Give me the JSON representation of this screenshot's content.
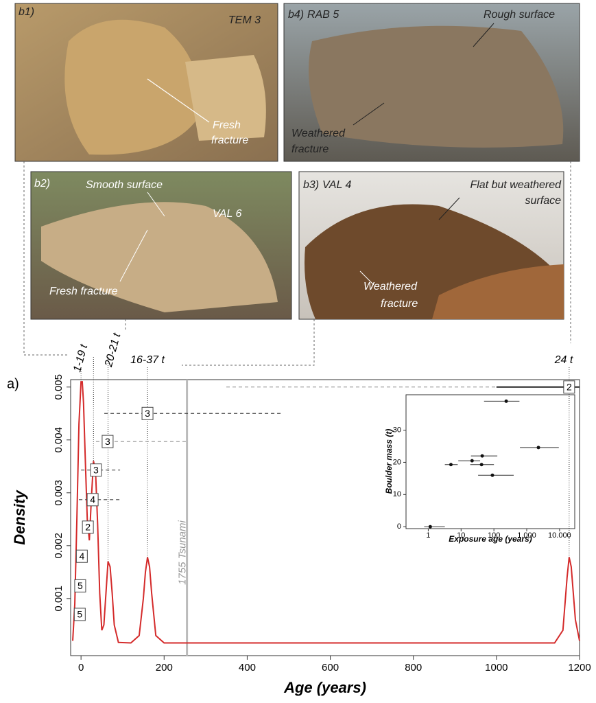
{
  "photos": [
    {
      "id": "b1)",
      "name": "TEM 3",
      "notes": [
        "Fresh",
        "fracture"
      ]
    },
    {
      "id": "b4)",
      "name": "RAB 5",
      "notes": [
        "Rough surface",
        "Weathered",
        "fracture"
      ]
    },
    {
      "id": "b2)",
      "name": "VAL 6",
      "notes": [
        "Smooth surface",
        "Fresh fracture"
      ]
    },
    {
      "id": "b3)",
      "name": "VAL 4",
      "notes": [
        "Flat but weathered",
        "surface",
        "Weathered",
        "fracture"
      ]
    }
  ],
  "chart_data": [
    {
      "type": "line",
      "panel": "a)",
      "xlabel": "Age (years)",
      "ylabel": "Density",
      "color": "#d42a2a",
      "x": [
        -20,
        -15,
        -10,
        -5,
        0,
        3,
        6,
        10,
        15,
        20,
        25,
        30,
        35,
        40,
        45,
        50,
        55,
        60,
        65,
        70,
        75,
        80,
        90,
        120,
        140,
        150,
        155,
        160,
        165,
        170,
        180,
        200,
        600,
        1140,
        1160,
        1170,
        1175,
        1180,
        1190,
        1200
      ],
      "values": [
        0.0002,
        0.0009,
        0.0025,
        0.0043,
        0.0051,
        0.0051,
        0.0047,
        0.0037,
        0.0025,
        0.0021,
        0.0029,
        0.0036,
        0.0034,
        0.0024,
        0.0011,
        0.0004,
        0.0005,
        0.0011,
        0.0017,
        0.0016,
        0.0011,
        0.0005,
        0.00017,
        0.00016,
        0.0003,
        0.001,
        0.0015,
        0.00178,
        0.0016,
        0.0011,
        0.0003,
        0.00016,
        0.00016,
        0.00016,
        0.0004,
        0.0014,
        0.00178,
        0.0016,
        0.0006,
        0.0002
      ],
      "xlim": [
        -25,
        1200
      ],
      "ylim": [
        -8e-05,
        0.00514
      ],
      "xticks": [
        0,
        200,
        400,
        600,
        800,
        1000,
        1200
      ],
      "yticks": [
        0.001,
        0.002,
        0.003,
        0.004,
        0.005
      ],
      "boxes": [
        {
          "label": "2",
          "x": 1175,
          "y": 0.005,
          "lo": 1000,
          "hi": 1200
        },
        {
          "label": "3",
          "x": 160,
          "y": 0.0045,
          "lo": 56,
          "hi": 485
        },
        {
          "label": "3",
          "x": 64,
          "y": 0.00397,
          "lo": 36,
          "hi": 254
        },
        {
          "label": "3",
          "x": 36,
          "y": 0.00343,
          "lo": 0,
          "hi": 94
        },
        {
          "label": "4",
          "x": 28,
          "y": 0.00287,
          "lo": -5,
          "hi": 94
        },
        {
          "label": "2",
          "x": 16.5,
          "y": 0.00235
        },
        {
          "label": "4",
          "x": 2,
          "y": 0.0018
        },
        {
          "label": "5",
          "x": -2,
          "y": 0.00124
        },
        {
          "label": "5",
          "x": -3,
          "y": 0.0007
        }
      ],
      "mass_labels": [
        "1-19 t",
        "20-21 t",
        "16-37 t",
        "24 t"
      ],
      "event": {
        "x": 255,
        "label": "1755 Tsunami"
      }
    },
    {
      "type": "scatter",
      "xlabel": "Exposure age (years)",
      "ylabel": "Boulder mass (t)",
      "log_x": true,
      "x": [
        1.15,
        4.9,
        21.6,
        44,
        42,
        90,
        237,
        2270
      ],
      "values": [
        0,
        19.3,
        20.5,
        22,
        19.3,
        16,
        39,
        24.6
      ],
      "xmin": [
        0.75,
        3.2,
        8.2,
        20,
        19,
        33,
        50,
        620
      ],
      "xmax": [
        3.2,
        7.9,
        38,
        127,
        100,
        400,
        600,
        9500
      ],
      "xlim": [
        0.21,
        29000
      ],
      "ylim": [
        -0.6,
        41
      ],
      "xticks": [
        1,
        10,
        100,
        {
          "value": 1000,
          "label": "1.000"
        },
        {
          "value": 10000,
          "label": "10.000"
        }
      ],
      "yticks": [
        0,
        10,
        20,
        30
      ]
    }
  ]
}
